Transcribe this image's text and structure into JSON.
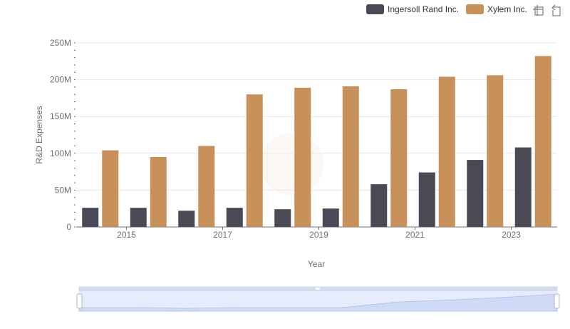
{
  "chart_data": {
    "type": "bar",
    "title": "",
    "xlabel": "Year",
    "ylabel": "R&D Expenses",
    "categories": [
      "2014",
      "2015",
      "2016",
      "2017",
      "2018",
      "2019",
      "2020",
      "2021",
      "2022",
      "2023"
    ],
    "x_tick_labels": [
      "2015",
      "2017",
      "2019",
      "2021",
      "2023"
    ],
    "y_tick_labels": [
      "0",
      "50M",
      "100M",
      "150M",
      "200M",
      "250M"
    ],
    "ylim": [
      0,
      250000000
    ],
    "grid": true,
    "legend_position": "top-right",
    "series": [
      {
        "name": "Ingersoll Rand Inc.",
        "color": "#4a4a56",
        "values": [
          26000000,
          26000000,
          22000000,
          26000000,
          24000000,
          25000000,
          58000000,
          74000000,
          91000000,
          108000000
        ]
      },
      {
        "name": "Xylem Inc.",
        "color": "#c8915a",
        "values": [
          104000000,
          95000000,
          110000000,
          180000000,
          189000000,
          191000000,
          187000000,
          204000000,
          206000000,
          232000000
        ]
      }
    ]
  },
  "toolbox": {
    "zoom_icon": "zoom-icon",
    "reset_icon": "restore-icon"
  }
}
